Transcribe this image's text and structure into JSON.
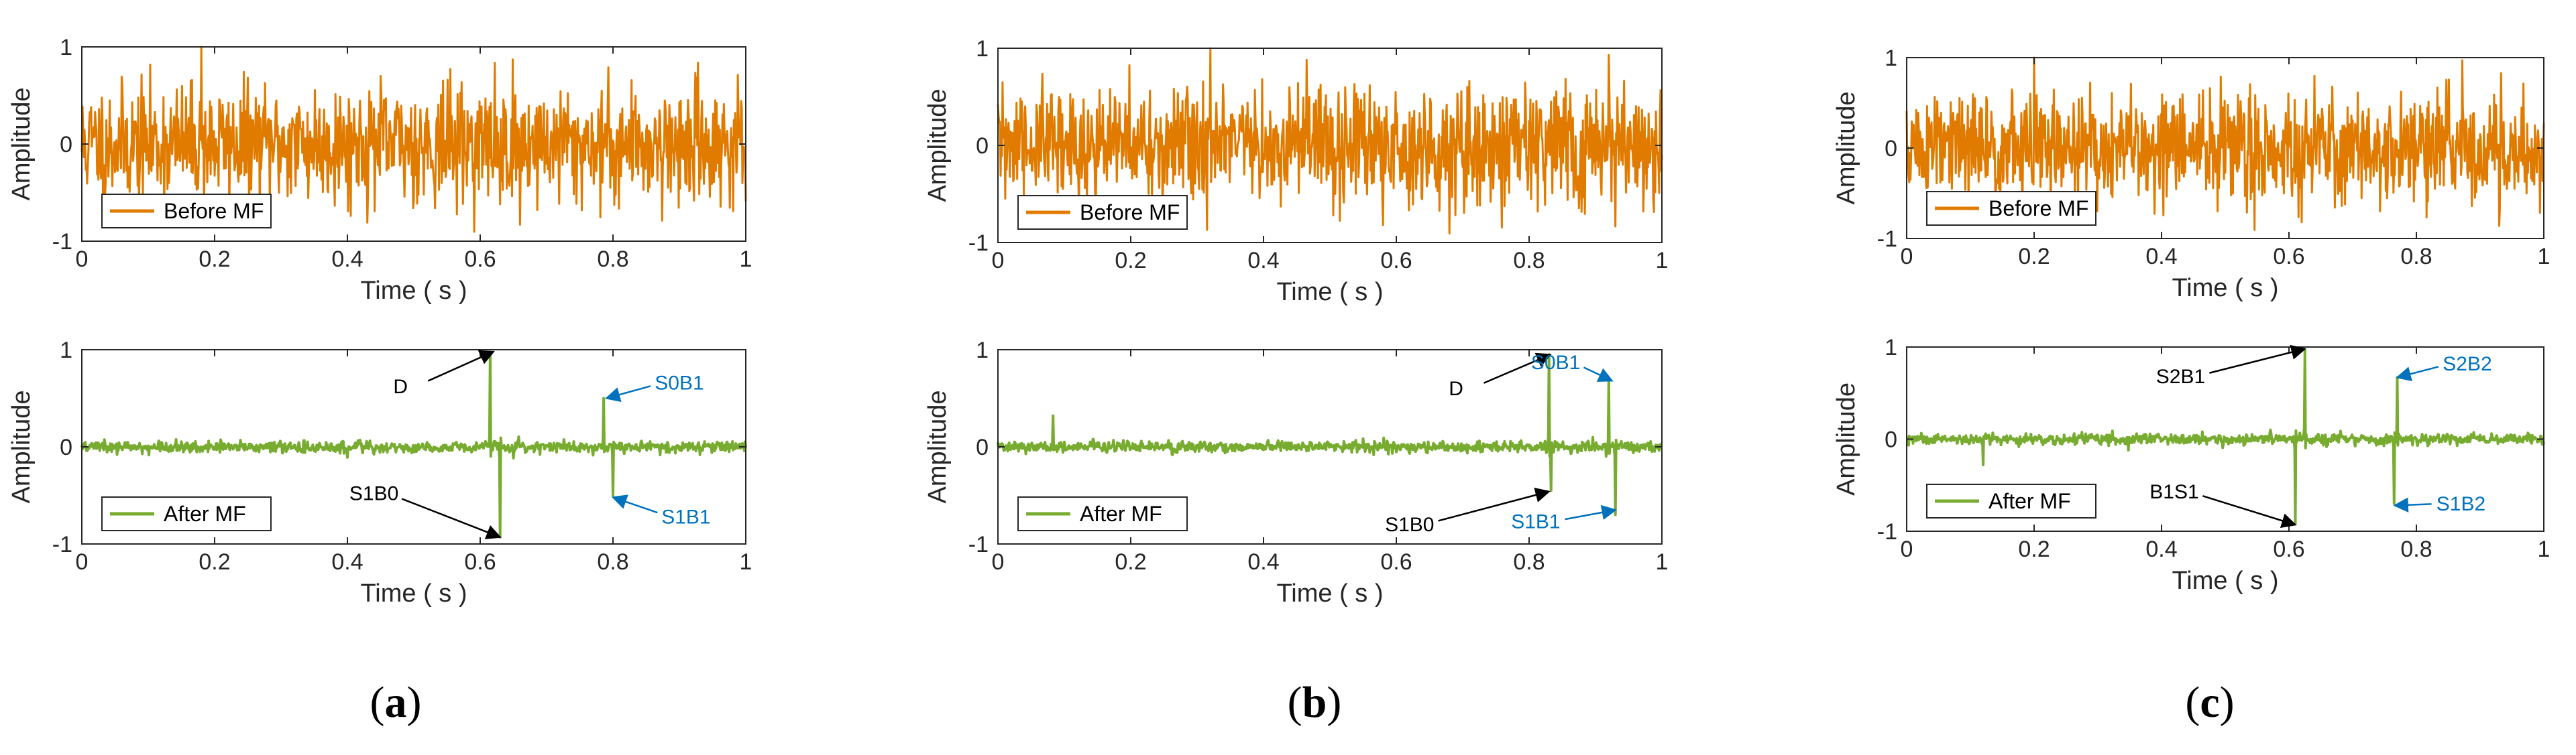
{
  "colors": {
    "before": "#E07B00",
    "after": "#77AC30",
    "axis": "#262626",
    "arrow_black": "#000000",
    "arrow_blue": "#0072BD"
  },
  "chart_data": [
    {
      "panel": "a",
      "position": "top",
      "type": "line",
      "series_kind": "noise",
      "seed": 11,
      "scale": 0.3,
      "spikes": [
        [
          0.18,
          1.0
        ],
        [
          0.66,
          -0.83
        ],
        [
          0.63,
          -0.62
        ]
      ],
      "xlabel": "Time ( s )",
      "ylabel": "Amplitude",
      "xlim": [
        0,
        1
      ],
      "ylim": [
        -1,
        1
      ],
      "xticks": [
        "0",
        "0.2",
        "0.4",
        "0.6",
        "0.8",
        "1"
      ],
      "yticks": [
        "-1",
        "0",
        "1"
      ],
      "legend": "Before MF",
      "legend_location": "bottom-left",
      "annotations": []
    },
    {
      "panel": "a",
      "position": "bottom",
      "type": "line",
      "series_kind": "filtered",
      "seed": 21,
      "scale": 0.035,
      "pulses": [
        {
          "t": 0.615,
          "a": 0.97
        },
        {
          "t": 0.63,
          "a": -0.93
        },
        {
          "t": 0.786,
          "a": 0.5
        },
        {
          "t": 0.8,
          "a": -0.5
        }
      ],
      "xlabel": "Time ( s )",
      "ylabel": "Amplitude",
      "xlim": [
        0,
        1
      ],
      "ylim": [
        -1,
        1
      ],
      "xticks": [
        "0",
        "0.2",
        "0.4",
        "0.6",
        "0.8",
        "1"
      ],
      "yticks": [
        "-1",
        "0",
        "1"
      ],
      "legend": "After MF",
      "legend_location": "bottom-left",
      "annotations": [
        {
          "text": "D",
          "color": "black",
          "text_at": [
            0.48,
            0.62
          ],
          "tip": [
            0.62,
            0.98
          ]
        },
        {
          "text": "S1B0",
          "color": "black",
          "text_at": [
            0.44,
            -0.48
          ],
          "tip": [
            0.63,
            -0.93
          ]
        },
        {
          "text": "S0B1",
          "color": "blue",
          "text_at": [
            0.9,
            0.66
          ],
          "tip": [
            0.79,
            0.5
          ]
        },
        {
          "text": "S1B1",
          "color": "blue",
          "text_at": [
            0.91,
            -0.72
          ],
          "tip": [
            0.8,
            -0.52
          ]
        }
      ]
    },
    {
      "panel": "b",
      "position": "top",
      "type": "line",
      "series_kind": "noise",
      "seed": 31,
      "scale": 0.3,
      "spikes": [
        [
          0.32,
          1.0
        ],
        [
          0.58,
          -0.82
        ],
        [
          0.92,
          0.93
        ]
      ],
      "xlabel": "Time ( s )",
      "ylabel": "Amplitude",
      "xlim": [
        0,
        1
      ],
      "ylim": [
        -1,
        1
      ],
      "xticks": [
        "0",
        "0.2",
        "0.4",
        "0.6",
        "0.8",
        "1"
      ],
      "yticks": [
        "-1",
        "0",
        "1"
      ],
      "legend": "Before MF",
      "legend_location": "bottom-left",
      "annotations": []
    },
    {
      "panel": "b",
      "position": "bottom",
      "type": "line",
      "series_kind": "filtered",
      "seed": 41,
      "scale": 0.035,
      "pulses": [
        {
          "t": 0.083,
          "a": 0.32
        },
        {
          "t": 0.83,
          "a": 0.95
        },
        {
          "t": 0.833,
          "a": -0.45
        },
        {
          "t": 0.92,
          "a": 0.68
        },
        {
          "t": 0.93,
          "a": -0.7
        }
      ],
      "xlabel": "Time ( s )",
      "ylabel": "Amplitude",
      "xlim": [
        0,
        1
      ],
      "ylim": [
        -1,
        1
      ],
      "xticks": [
        "0",
        "0.2",
        "0.4",
        "0.6",
        "0.8",
        "1"
      ],
      "yticks": [
        "-1",
        "0",
        "1"
      ],
      "legend": "After MF",
      "legend_location": "bottom-left",
      "annotations": [
        {
          "text": "D",
          "color": "black",
          "text_at": [
            0.69,
            0.6
          ],
          "tip": [
            0.832,
            0.95
          ]
        },
        {
          "text": "S0B1",
          "color": "blue",
          "text_at": [
            0.84,
            0.87
          ],
          "tip": [
            0.925,
            0.68
          ]
        },
        {
          "text": "S1B0",
          "color": "black",
          "text_at": [
            0.62,
            -0.8
          ],
          "tip": [
            0.83,
            -0.46
          ]
        },
        {
          "text": "S1B1",
          "color": "blue",
          "text_at": [
            0.81,
            -0.77
          ],
          "tip": [
            0.93,
            -0.65
          ]
        }
      ]
    },
    {
      "panel": "c",
      "position": "top",
      "type": "line",
      "series_kind": "noise",
      "seed": 51,
      "scale": 0.3,
      "spikes": [
        [
          0.2,
          1.0
        ],
        [
          0.62,
          -0.82
        ],
        [
          0.93,
          -0.86
        ]
      ],
      "xlabel": "Time ( s )",
      "ylabel": "Amplitude",
      "xlim": [
        0,
        1
      ],
      "ylim": [
        -1,
        1
      ],
      "xticks": [
        "0",
        "0.2",
        "0.4",
        "0.6",
        "0.8",
        "1"
      ],
      "yticks": [
        "-1",
        "0",
        "1"
      ],
      "legend": "Before MF",
      "legend_location": "bottom-left",
      "annotations": []
    },
    {
      "panel": "c",
      "position": "bottom",
      "type": "line",
      "series_kind": "filtered",
      "seed": 61,
      "scale": 0.035,
      "pulses": [
        {
          "t": 0.12,
          "a": -0.28
        },
        {
          "t": 0.61,
          "a": -0.92
        },
        {
          "t": 0.625,
          "a": 0.97
        },
        {
          "t": 0.77,
          "a": 0.67
        },
        {
          "t": 0.765,
          "a": -0.7
        }
      ],
      "xlabel": "Time ( s )",
      "ylabel": "Amplitude",
      "xlim": [
        0,
        1
      ],
      "ylim": [
        -1,
        1
      ],
      "xticks": [
        "0",
        "0.2",
        "0.4",
        "0.6",
        "0.8",
        "1"
      ],
      "yticks": [
        "-1",
        "0",
        "1"
      ],
      "legend": "After MF",
      "legend_location": "bottom-left",
      "annotations": [
        {
          "text": "S2B1",
          "color": "black",
          "text_at": [
            0.43,
            0.68
          ],
          "tip": [
            0.625,
            0.98
          ]
        },
        {
          "text": "B1S1",
          "color": "black",
          "text_at": [
            0.42,
            -0.57
          ],
          "tip": [
            0.61,
            -0.93
          ]
        },
        {
          "text": "S2B2",
          "color": "blue",
          "text_at": [
            0.88,
            0.82
          ],
          "tip": [
            0.77,
            0.67
          ]
        },
        {
          "text": "S1B2",
          "color": "blue",
          "text_at": [
            0.87,
            -0.7
          ],
          "tip": [
            0.766,
            -0.72
          ]
        }
      ]
    }
  ],
  "captions": [
    {
      "open": "(",
      "letter": "a",
      "close": ")"
    },
    {
      "open": "(",
      "letter": "b",
      "close": ")"
    },
    {
      "open": "(",
      "letter": "c",
      "close": ")"
    }
  ]
}
